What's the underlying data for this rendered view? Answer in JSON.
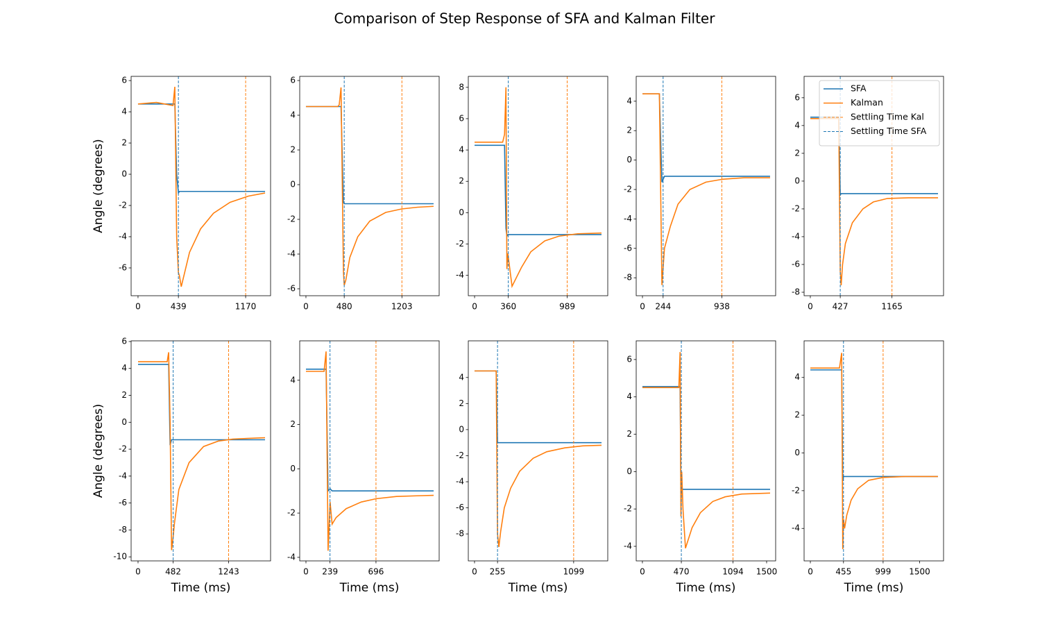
{
  "title": "Comparison of Step Response of SFA and Kalman Filter",
  "chart_data": [
    {
      "type": "line",
      "ylabel": "Angle (degrees)",
      "x": [
        0,
        200,
        380,
        400,
        420,
        439,
        450,
        470,
        560,
        680,
        820,
        1000,
        1200,
        1381
      ],
      "series": [
        {
          "name": "SFA",
          "color": "#1f77b4",
          "values": [
            4.5,
            4.5,
            4.5,
            4.5,
            0,
            -1.2,
            -1.1,
            -1.1,
            -1.1,
            -1.1,
            -1.1,
            -1.1,
            -1.1,
            -1.1
          ]
        },
        {
          "name": "Kalman",
          "color": "#ff7f0e",
          "values": [
            4.5,
            4.6,
            4.4,
            5.6,
            -4,
            -6.3,
            -6.5,
            -7.2,
            -5,
            -3.5,
            -2.5,
            -1.8,
            -1.4,
            -1.2
          ]
        }
      ],
      "vlines": [
        {
          "name": "Settling Time Kal",
          "color": "#ff7f0e",
          "value": 1170
        },
        {
          "name": "Settling Time SFA",
          "color": "#1f77b4",
          "value": 439
        }
      ],
      "xlim": [
        -75,
        1441
      ],
      "ylim": [
        -7.78,
        6.27
      ],
      "xticks": [
        0,
        439,
        1170
      ],
      "yticks": [
        -6,
        -4,
        -2,
        0,
        2,
        4,
        6
      ]
    },
    {
      "type": "line",
      "x": [
        0,
        400,
        417,
        440,
        470,
        480,
        500,
        550,
        650,
        800,
        1000,
        1200,
        1400,
        1600
      ],
      "series": [
        {
          "name": "SFA",
          "color": "#1f77b4",
          "values": [
            4.5,
            4.5,
            4.5,
            4.5,
            -1.0,
            -1.1,
            -1.1,
            -1.1,
            -1.1,
            -1.1,
            -1.1,
            -1.1,
            -1.1,
            -1.1
          ]
        },
        {
          "name": "Kalman",
          "color": "#ff7f0e",
          "values": [
            4.5,
            4.5,
            4.6,
            5.6,
            -5,
            -5.8,
            -5.5,
            -4.2,
            -3,
            -2.1,
            -1.6,
            -1.4,
            -1.3,
            -1.25
          ]
        }
      ],
      "vlines": [
        {
          "name": "Settling Time Kal",
          "color": "#ff7f0e",
          "value": 1203
        },
        {
          "name": "Settling Time SFA",
          "color": "#1f77b4",
          "value": 480
        }
      ],
      "xlim": [
        -78,
        1670
      ],
      "ylim": [
        -6.4,
        6.24
      ],
      "xticks": [
        0,
        480,
        1203
      ],
      "yticks": [
        -6,
        -4,
        -2,
        0,
        2,
        4,
        6
      ]
    },
    {
      "type": "line",
      "x": [
        0,
        300,
        320,
        335,
        345,
        355,
        400,
        500,
        600,
        750,
        900,
        1100,
        1355
      ],
      "series": [
        {
          "name": "SFA",
          "color": "#1f77b4",
          "values": [
            4.3,
            4.3,
            4.3,
            -1.0,
            -1.5,
            -1.4,
            -1.4,
            -1.4,
            -1.4,
            -1.4,
            -1.4,
            -1.4,
            -1.4
          ]
        },
        {
          "name": "Kalman",
          "color": "#ff7f0e",
          "values": [
            4.5,
            4.5,
            5.0,
            8.0,
            -3.6,
            -2.6,
            -4.7,
            -3.5,
            -2.5,
            -1.8,
            -1.5,
            -1.35,
            -1.3
          ]
        }
      ],
      "vlines": [
        {
          "name": "Settling Time Kal",
          "color": "#ff7f0e",
          "value": 989
        },
        {
          "name": "Settling Time SFA",
          "color": "#1f77b4",
          "value": 360
        }
      ],
      "xlim": [
        -67,
        1422
      ],
      "ylim": [
        -5.3,
        8.7
      ],
      "xticks": [
        0,
        360,
        989
      ],
      "yticks": [
        -4,
        -2,
        0,
        2,
        4,
        6,
        8
      ]
    },
    {
      "type": "line",
      "x": [
        0,
        200,
        230,
        260,
        330,
        420,
        560,
        750,
        950,
        1200,
        1508
      ],
      "series": [
        {
          "name": "SFA",
          "color": "#1f77b4",
          "values": [
            4.5,
            4.5,
            -1.5,
            -1.1,
            -1.1,
            -1.1,
            -1.1,
            -1.1,
            -1.1,
            -1.1,
            -1.1
          ]
        },
        {
          "name": "Kalman",
          "color": "#ff7f0e",
          "values": [
            4.5,
            4.5,
            -8.5,
            -6,
            -4.5,
            -3,
            -2,
            -1.5,
            -1.3,
            -1.2,
            -1.2
          ]
        }
      ],
      "vlines": [
        {
          "name": "Settling Time Kal",
          "color": "#ff7f0e",
          "value": 938
        },
        {
          "name": "Settling Time SFA",
          "color": "#1f77b4",
          "value": 244
        }
      ],
      "xlim": [
        -74,
        1574
      ],
      "ylim": [
        -9.22,
        5.69
      ],
      "xticks": [
        0,
        244,
        938
      ],
      "yticks": [
        -8,
        -6,
        -4,
        -2,
        0,
        2,
        4
      ]
    },
    {
      "type": "line",
      "legend": "upper right",
      "x": [
        0,
        380,
        405,
        427,
        440,
        460,
        500,
        600,
        750,
        900,
        1100,
        1400,
        1822
      ],
      "series": [
        {
          "name": "SFA",
          "color": "#1f77b4",
          "values": [
            4.6,
            4.6,
            4.6,
            -1.0,
            -0.9,
            -0.9,
            -0.9,
            -0.9,
            -0.9,
            -0.9,
            -0.9,
            -0.9,
            -0.9
          ]
        },
        {
          "name": "Kalman",
          "color": "#ff7f0e",
          "values": [
            4.5,
            4.5,
            4.5,
            -6.5,
            -7.5,
            -6,
            -4.5,
            -3,
            -2,
            -1.5,
            -1.25,
            -1.2,
            -1.2
          ]
        }
      ],
      "vlines": [
        {
          "name": "Settling Time Kal",
          "color": "#ff7f0e",
          "value": 1165
        },
        {
          "name": "Settling Time SFA",
          "color": "#1f77b4",
          "value": 427
        }
      ],
      "xlim": [
        -89,
        1901
      ],
      "ylim": [
        -8.25,
        7.54
      ],
      "xticks": [
        0,
        427,
        1165
      ],
      "yticks": [
        -8,
        -6,
        -4,
        -2,
        0,
        2,
        4,
        6
      ]
    },
    {
      "type": "line",
      "ylabel": "Angle (degrees)",
      "xlabel": "Time (ms)",
      "x": [
        0,
        400,
        420,
        440,
        460,
        482,
        500,
        560,
        700,
        900,
        1100,
        1300,
        1500,
        1743
      ],
      "series": [
        {
          "name": "SFA",
          "color": "#1f77b4",
          "values": [
            4.3,
            4.3,
            4.3,
            -1.7,
            -1.3,
            -1.3,
            -1.3,
            -1.3,
            -1.3,
            -1.3,
            -1.3,
            -1.3,
            -1.3,
            -1.3
          ]
        },
        {
          "name": "Kalman",
          "color": "#ff7f0e",
          "values": [
            4.5,
            4.5,
            5.2,
            0,
            -9.5,
            -8.5,
            -7.5,
            -5,
            -3,
            -1.8,
            -1.4,
            -1.25,
            -1.2,
            -1.15
          ]
        }
      ],
      "vlines": [
        {
          "name": "Settling Time Kal",
          "color": "#ff7f0e",
          "value": 1243
        },
        {
          "name": "Settling Time SFA",
          "color": "#1f77b4",
          "value": 482
        }
      ],
      "xlim": [
        -95,
        1819
      ],
      "ylim": [
        -10.3,
        6.05
      ],
      "xticks": [
        0,
        482,
        1243
      ],
      "yticks": [
        -10,
        -8,
        -6,
        -4,
        -2,
        0,
        2,
        4,
        6
      ]
    },
    {
      "type": "line",
      "xlabel": "Time (ms)",
      "x": [
        0,
        180,
        200,
        220,
        240,
        260,
        300,
        400,
        550,
        700,
        900,
        1100,
        1269
      ],
      "series": [
        {
          "name": "SFA",
          "color": "#1f77b4",
          "values": [
            4.5,
            4.5,
            4.5,
            -1.0,
            -0.9,
            -1.0,
            -1.0,
            -1.0,
            -1.0,
            -1.0,
            -1.0,
            -1.0,
            -1.0
          ]
        },
        {
          "name": "Kalman",
          "color": "#ff7f0e",
          "values": [
            4.4,
            4.4,
            5.3,
            -3.7,
            -1.5,
            -2.5,
            -2.2,
            -1.8,
            -1.5,
            -1.35,
            -1.25,
            -1.22,
            -1.2
          ]
        }
      ],
      "vlines": [
        {
          "name": "Settling Time Kal",
          "color": "#ff7f0e",
          "value": 696
        },
        {
          "name": "Settling Time SFA",
          "color": "#1f77b4",
          "value": 239
        }
      ],
      "xlim": [
        -62,
        1324
      ],
      "ylim": [
        -4.16,
        5.78
      ],
      "xticks": [
        0,
        239,
        696
      ],
      "yticks": [
        -4,
        -2,
        0,
        2,
        4
      ]
    },
    {
      "type": "line",
      "xlabel": "Time (ms)",
      "x": [
        0,
        240,
        255,
        270,
        290,
        330,
        400,
        500,
        650,
        800,
        1000,
        1200,
        1408
      ],
      "series": [
        {
          "name": "SFA",
          "color": "#1f77b4",
          "values": [
            4.5,
            4.5,
            -1.0,
            -1.0,
            -1.0,
            -1.0,
            -1.0,
            -1.0,
            -1.0,
            -1.0,
            -1.0,
            -1.0,
            -1.0
          ]
        },
        {
          "name": "Kalman",
          "color": "#ff7f0e",
          "values": [
            4.5,
            4.5,
            -8,
            -9,
            -7.8,
            -6,
            -4.5,
            -3.2,
            -2.2,
            -1.7,
            -1.4,
            -1.25,
            -1.2
          ]
        }
      ],
      "vlines": [
        {
          "name": "Settling Time Kal",
          "color": "#ff7f0e",
          "value": 1099
        },
        {
          "name": "Settling Time SFA",
          "color": "#1f77b4",
          "value": 255
        }
      ],
      "xlim": [
        -69,
        1477
      ],
      "ylim": [
        -10.07,
        6.81
      ],
      "xticks": [
        0,
        255,
        1099
      ],
      "yticks": [
        -8,
        -6,
        -4,
        -2,
        0,
        2,
        4
      ]
    },
    {
      "type": "line",
      "xlabel": "Time (ms)",
      "x": [
        0,
        420,
        440,
        455,
        465,
        475,
        490,
        520,
        600,
        700,
        850,
        1000,
        1200,
        1542
      ],
      "series": [
        {
          "name": "SFA",
          "color": "#1f77b4",
          "values": [
            4.55,
            4.55,
            4.55,
            4.55,
            -1.0,
            -0.9,
            -0.95,
            -0.95,
            -0.95,
            -0.95,
            -0.95,
            -0.95,
            -0.95,
            -0.95
          ]
        },
        {
          "name": "Kalman",
          "color": "#ff7f0e",
          "values": [
            4.5,
            4.5,
            4.5,
            6.4,
            -2.4,
            0,
            -2,
            -4.1,
            -3,
            -2.2,
            -1.6,
            -1.35,
            -1.2,
            -1.15
          ]
        }
      ],
      "vlines": [
        {
          "name": "Settling Time Kal",
          "color": "#ff7f0e",
          "value": 1094
        },
        {
          "name": "Settling Time SFA",
          "color": "#1f77b4",
          "value": 470
        }
      ],
      "xlim": [
        -75,
        1609
      ],
      "ylim": [
        -4.78,
        7.0
      ],
      "xticks": [
        0,
        470,
        1094,
        1500
      ],
      "yticks": [
        -4,
        -2,
        0,
        2,
        4,
        6
      ]
    },
    {
      "type": "line",
      "xlabel": "Time (ms)",
      "x": [
        0,
        400,
        430,
        445,
        455,
        470,
        500,
        560,
        650,
        800,
        1000,
        1300,
        1752
      ],
      "series": [
        {
          "name": "SFA",
          "color": "#1f77b4",
          "values": [
            4.4,
            4.4,
            4.4,
            -1.5,
            -1.25,
            -1.25,
            -1.25,
            -1.25,
            -1.25,
            -1.25,
            -1.25,
            -1.25,
            -1.25
          ]
        },
        {
          "name": "Kalman",
          "color": "#ff7f0e",
          "values": [
            4.5,
            4.5,
            5.3,
            -5.1,
            -3.5,
            -4,
            -3.3,
            -2.5,
            -1.9,
            -1.45,
            -1.3,
            -1.25,
            -1.25
          ]
        }
      ],
      "vlines": [
        {
          "name": "Settling Time Kal",
          "color": "#ff7f0e",
          "value": 999
        },
        {
          "name": "Settling Time SFA",
          "color": "#1f77b4",
          "value": 455
        }
      ],
      "xlim": [
        -86,
        1829
      ],
      "ylim": [
        -5.72,
        5.94
      ],
      "xticks": [
        0,
        455,
        999,
        1500
      ],
      "yticks": [
        -4,
        -2,
        0,
        2,
        4
      ]
    }
  ]
}
